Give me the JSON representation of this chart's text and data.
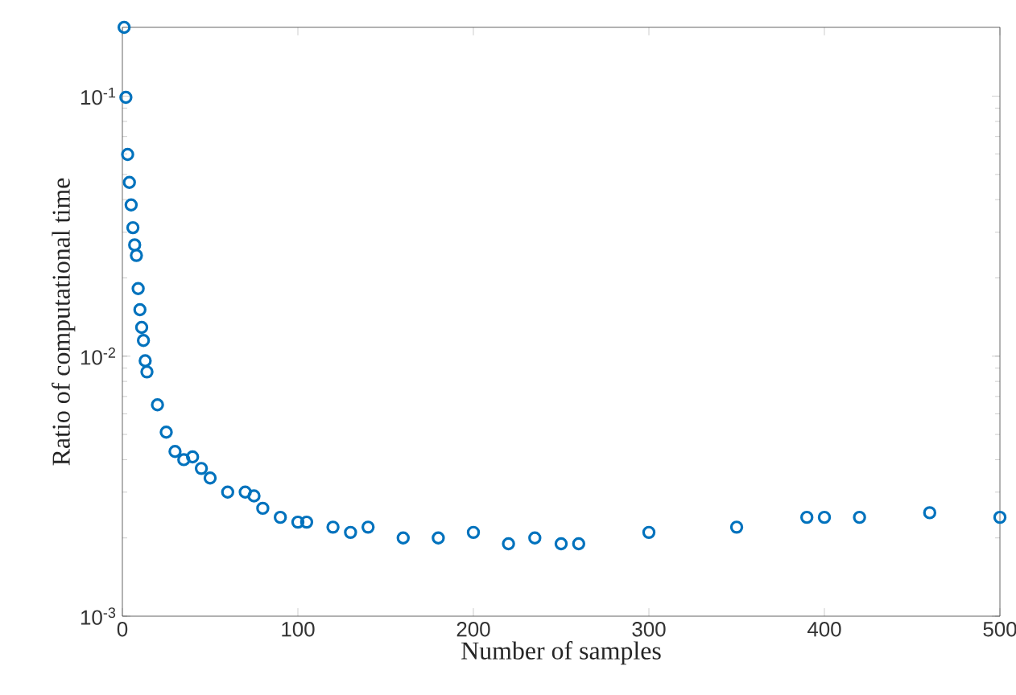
{
  "chart_data": {
    "type": "scatter",
    "xlabel": "Number of samples",
    "ylabel": "Ratio of computational time",
    "log": "y",
    "marker": "circle",
    "grid": false,
    "xlim": [
      0,
      500
    ],
    "xticks": [
      0,
      100,
      200,
      300,
      400,
      500
    ],
    "ylim": [
      0.001,
      0.184
    ],
    "yticks": [
      {
        "value": 0.001,
        "label": "10$^{-3}$"
      },
      {
        "value": 0.01,
        "label": "10$^{-2}$"
      },
      {
        "value": 0.1,
        "label": "10$^{-1}$"
      }
    ],
    "series": [
      {
        "color": "#0072bd",
        "x": [
          1,
          2,
          3,
          4,
          5,
          6,
          7,
          8,
          9,
          10,
          11,
          12,
          13,
          14,
          20,
          25,
          30,
          35,
          40,
          45,
          50,
          60,
          70,
          75,
          80,
          90,
          100,
          105,
          120,
          130,
          140,
          160,
          180,
          200,
          220,
          235,
          250,
          260,
          300,
          350,
          390,
          400,
          420,
          460,
          500
        ],
        "values": [
          0.184,
          0.099,
          0.0597,
          0.0466,
          0.0382,
          0.0312,
          0.0268,
          0.0244,
          0.0182,
          0.0151,
          0.0129,
          0.0115,
          0.0096,
          0.0087,
          0.0065,
          0.0051,
          0.0043,
          0.004,
          0.0041,
          0.0037,
          0.0034,
          0.003,
          0.003,
          0.0029,
          0.0026,
          0.0024,
          0.0023,
          0.0023,
          0.0022,
          0.0021,
          0.0022,
          0.002,
          0.002,
          0.0021,
          0.0019,
          0.002,
          0.0019,
          0.0019,
          0.0021,
          0.0022,
          0.0024,
          0.0024,
          0.0024,
          0.0025,
          0.0024
        ]
      }
    ]
  }
}
